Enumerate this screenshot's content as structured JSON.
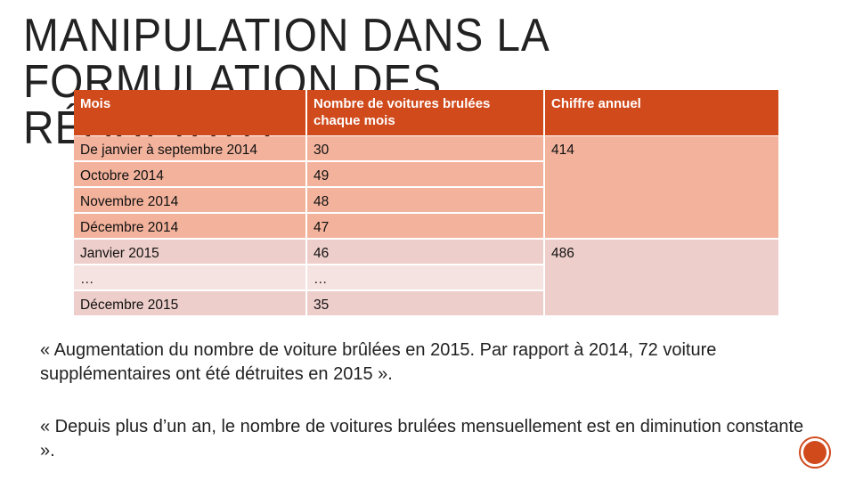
{
  "title": "MANIPULATION DANS LA FORMULATION DES RÉSULTATS",
  "table": {
    "header": [
      "Mois",
      "Nombre de voitures brulées chaque mois",
      "Chiffre annuel"
    ],
    "rows": [
      [
        "De janvier à septembre 2014",
        "30"
      ],
      [
        "Octobre 2014",
        "49"
      ],
      [
        "Novembre 2014",
        "48"
      ],
      [
        "Décembre 2014",
        "47"
      ],
      [
        "Janvier 2015",
        "46"
      ],
      [
        "…",
        "…"
      ],
      [
        "Décembre 2015",
        "35"
      ]
    ],
    "annual": [
      "414",
      "486"
    ]
  },
  "paragraphs": [
    "« Augmentation du nombre de voiture brûlées en 2015. Par rapport à 2014, 72 voiture supplémentaires ont été détruites en 2015 ».",
    "« Depuis plus d’un an, le nombre de voitures brulées mensuellement est en diminution constante »."
  ]
}
